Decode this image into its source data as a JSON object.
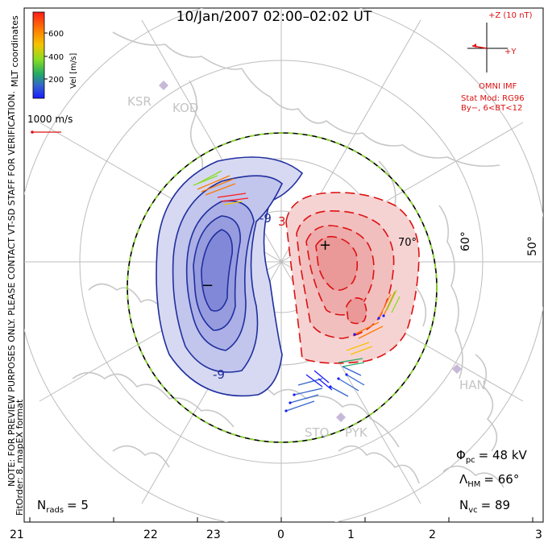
{
  "title": "10/Jan/2007 02:00–02:02 UT",
  "colorbar": {
    "label": "Vel [m/s]",
    "ticks": [
      "600",
      "400",
      "200"
    ],
    "colors": [
      "#ff1a1a",
      "#ff7a00",
      "#f5c400",
      "#88dd22",
      "#22aa66",
      "#3366cc",
      "#1a1aff"
    ]
  },
  "coord_label": "MLT coordinates",
  "scale_vector": "1000 m/s",
  "imf": {
    "bz_label": "+Z (10 nT)",
    "by_label": "+Y",
    "source": "OMNI IMF",
    "model": "Stat Mod: RG96",
    "condition": "By−, 6<BT<12"
  },
  "stations": [
    "KSR",
    "KOD",
    "STO",
    "PYK",
    "HAN"
  ],
  "contour_labels": {
    "neg": "-9",
    "neg2": "-9",
    "pos": "3"
  },
  "focus_markers": {
    "min": "−",
    "max": "+"
  },
  "latitude_labels": [
    "70°",
    "60°",
    "50°"
  ],
  "notes": {
    "preview": "NOTE: FOR PREVIEW PURPOSES ONLY. PLEASE CONTACT VT-SD STAFF FOR VERIFICATION.",
    "fit": "FitOrder: 8, mapEX format"
  },
  "stats": {
    "phi_symbol": "Φ",
    "phi_sub": "pc",
    "phi_value": "= 48 kV",
    "lambda_symbol": "Λ",
    "lambda_sub": "HM",
    "lambda_value": "= 66°",
    "nvc_symbol": "N",
    "nvc_sub": "vc",
    "nvc_value": "= 89",
    "nrads_symbol": "N",
    "nrads_sub": "rads",
    "nrads_value": "= 5"
  },
  "mlt_ticks": [
    "21",
    "22",
    "23",
    "0",
    "1",
    "2",
    "3"
  ]
}
